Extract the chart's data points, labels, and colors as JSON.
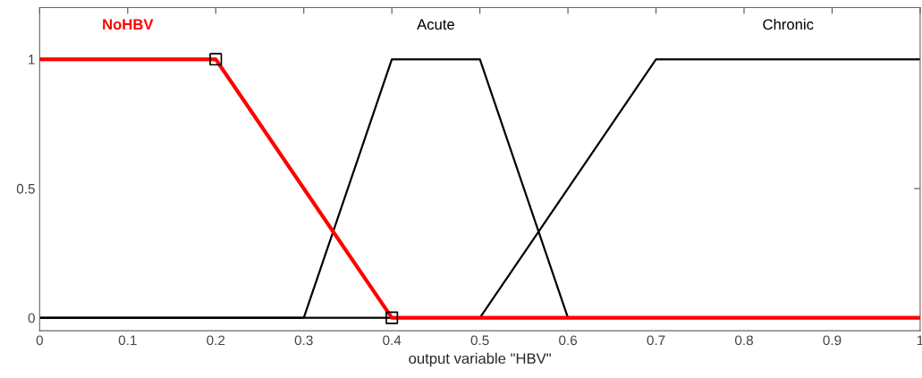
{
  "chart_data": {
    "type": "line",
    "xlabel": "output variable \"HBV\"",
    "xlim": [
      0,
      1
    ],
    "ylim": [
      -0.05,
      1.2
    ],
    "xticks": [
      0,
      0.1,
      0.2,
      0.3,
      0.4,
      0.5,
      0.6,
      0.7,
      0.8,
      0.9,
      1
    ],
    "yticks": [
      0,
      0.5,
      1
    ],
    "grid": false,
    "marker": "none",
    "line_style": "solid",
    "series": [
      {
        "name": "NoHBV",
        "color": "#ff0000",
        "x": [
          0,
          0.2,
          0.4,
          1
        ],
        "values": [
          1,
          1,
          0,
          0
        ]
      },
      {
        "name": "Acute",
        "color": "#000000",
        "x": [
          0,
          0.3,
          0.4,
          0.5,
          0.6,
          1
        ],
        "values": [
          0,
          0,
          1,
          1,
          0,
          0
        ]
      },
      {
        "name": "Chronic",
        "color": "#000000",
        "x": [
          0,
          0.5,
          0.7,
          1
        ],
        "values": [
          0,
          0,
          1,
          1
        ]
      },
      {
        "type": "scatter",
        "marker": "square",
        "color": "#000000",
        "x": [
          0.2,
          0.4
        ],
        "values": [
          1,
          0
        ]
      }
    ]
  }
}
